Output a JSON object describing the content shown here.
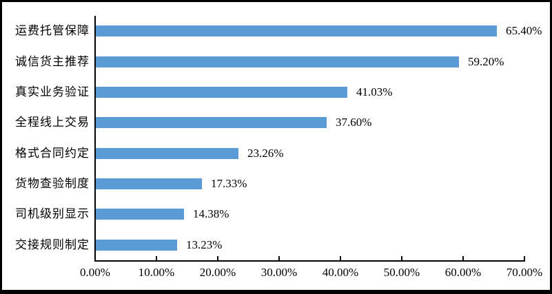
{
  "figure": {
    "background_color": "#ffffff",
    "frame_color": "#000000",
    "axis_color": "#000000",
    "text_color": "#000000"
  },
  "chart_data": {
    "type": "bar",
    "orientation": "horizontal",
    "title": "",
    "xlabel": "",
    "ylabel": "",
    "categories": [
      "运费托管保障",
      "诚信货主推荐",
      "真实业务验证",
      "全程线上交易",
      "格式合同约定",
      "货物查验制度",
      "司机级别显示",
      "交接规则制定"
    ],
    "values": [
      65.4,
      59.2,
      41.03,
      37.6,
      23.26,
      17.33,
      14.38,
      13.23
    ],
    "value_labels": [
      "65.40%",
      "59.20%",
      "41.03%",
      "37.60%",
      "23.26%",
      "17.33%",
      "14.38%",
      "13.23%"
    ],
    "x_ticks": [
      "0.00%",
      "10.00%",
      "20.00%",
      "30.00%",
      "40.00%",
      "50.00%",
      "60.00%",
      "70.00%"
    ],
    "x_tick_values": [
      0,
      10,
      20,
      30,
      40,
      50,
      60,
      70
    ],
    "xlim": [
      0,
      70
    ],
    "bar_color": "#5b9bd5",
    "grid": "off",
    "legend": "none",
    "value_label_position": "right-of-bar"
  }
}
